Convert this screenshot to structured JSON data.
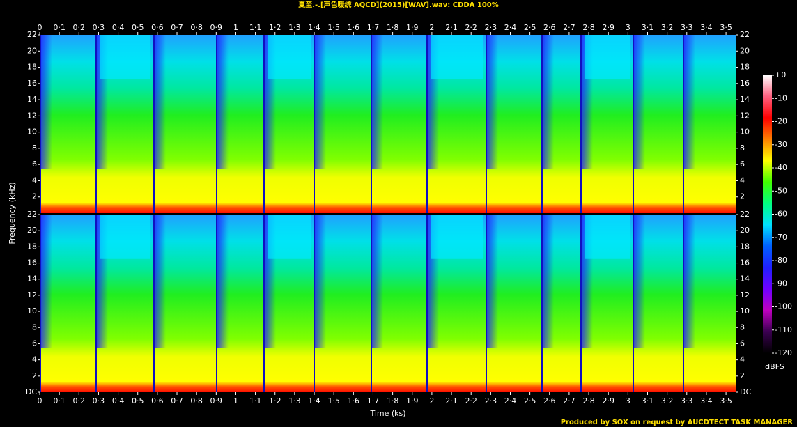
{
  "chart_data": {
    "type": "spectrogram",
    "title": "夏至.-.[声色暖统 AQCD](2015)[WAV].wav: CDDA 100%",
    "xlabel": "Time (ks)",
    "ylabel": "Frequency (kHz)",
    "footer": "Produced by SOX on request by AUCDTECT TASK MANAGER",
    "channels": 2,
    "xlim": [
      0,
      3.553
    ],
    "xticks": [
      0,
      {
        "value": 0.1,
        "label": "0·1"
      },
      {
        "value": 0.2,
        "label": "0·2"
      },
      {
        "value": 0.3,
        "label": "0·3"
      },
      {
        "value": 0.4,
        "label": "0·4"
      },
      {
        "value": 0.5,
        "label": "0·5"
      },
      {
        "value": 0.6,
        "label": "0·6"
      },
      {
        "value": 0.7,
        "label": "0·7"
      },
      {
        "value": 0.8,
        "label": "0·8"
      },
      {
        "value": 0.9,
        "label": "0·9"
      },
      1,
      {
        "value": 1.1,
        "label": "1·1"
      },
      {
        "value": 1.2,
        "label": "1·2"
      },
      {
        "value": 1.3,
        "label": "1·3"
      },
      {
        "value": 1.4,
        "label": "1·4"
      },
      {
        "value": 1.5,
        "label": "1·5"
      },
      {
        "value": 1.6,
        "label": "1·6"
      },
      {
        "value": 1.7,
        "label": "1·7"
      },
      {
        "value": 1.8,
        "label": "1·8"
      },
      {
        "value": 1.9,
        "label": "1·9"
      },
      2,
      {
        "value": 2.1,
        "label": "2·1"
      },
      {
        "value": 2.2,
        "label": "2·2"
      },
      {
        "value": 2.3,
        "label": "2·3"
      },
      {
        "value": 2.4,
        "label": "2·4"
      },
      {
        "value": 2.5,
        "label": "2·5"
      },
      {
        "value": 2.6,
        "label": "2·6"
      },
      {
        "value": 2.7,
        "label": "2·7"
      },
      {
        "value": 2.8,
        "label": "2·8"
      },
      {
        "value": 2.9,
        "label": "2·9"
      },
      3,
      {
        "value": 3.1,
        "label": "3·1"
      },
      {
        "value": 3.2,
        "label": "3·2"
      },
      {
        "value": 3.3,
        "label": "3·3"
      },
      {
        "value": 3.4,
        "label": "3·4"
      },
      {
        "value": 3.5,
        "label": "3·5"
      }
    ],
    "ylim": [
      0,
      22
    ],
    "yticks": [
      {
        "value": 0,
        "label": "DC"
      },
      2,
      4,
      6,
      8,
      10,
      12,
      14,
      16,
      18,
      20,
      22
    ],
    "colorbar": {
      "label": "dBFS",
      "lim": [
        -120,
        0
      ],
      "ticks": [
        {
          "value": 0,
          "label": "+0"
        },
        -10,
        -20,
        -30,
        -40,
        -50,
        -60,
        -70,
        -80,
        -90,
        -100,
        -110,
        -120
      ],
      "colors": [
        "#000000",
        "#3a0050",
        "#c000c0",
        "#7000ff",
        "#2020ff",
        "#0060ff",
        "#00e0ff",
        "#00ff80",
        "#40ff00",
        "#ffff00",
        "#ff8000",
        "#ff0000",
        "#ff6080",
        "#ffffff"
      ]
    }
  }
}
